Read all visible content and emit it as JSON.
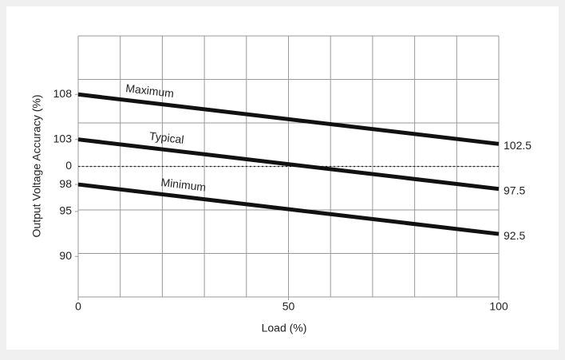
{
  "chart_data": {
    "type": "line",
    "x_label": "Load (%)",
    "y_label": "Output Voltage Accuracy (%)",
    "x": [
      0,
      100
    ],
    "series": [
      {
        "name": "Maximum",
        "color": "#111111",
        "values": [
          108,
          102.5
        ]
      },
      {
        "name": "Typical",
        "color": "#111111",
        "values": [
          103,
          97.5
        ]
      },
      {
        "name": "Minimum",
        "color": "#111111",
        "values": [
          98,
          92.5
        ]
      }
    ],
    "xlim": [
      0,
      100
    ],
    "xticks": [
      0,
      50,
      100
    ],
    "ylim": [
      85.5,
      114.5
    ],
    "yticks": [
      108,
      103,
      {
        "value": 100,
        "label": "0",
        "style": "dotted"
      },
      98,
      95,
      90
    ],
    "grid": true
  }
}
